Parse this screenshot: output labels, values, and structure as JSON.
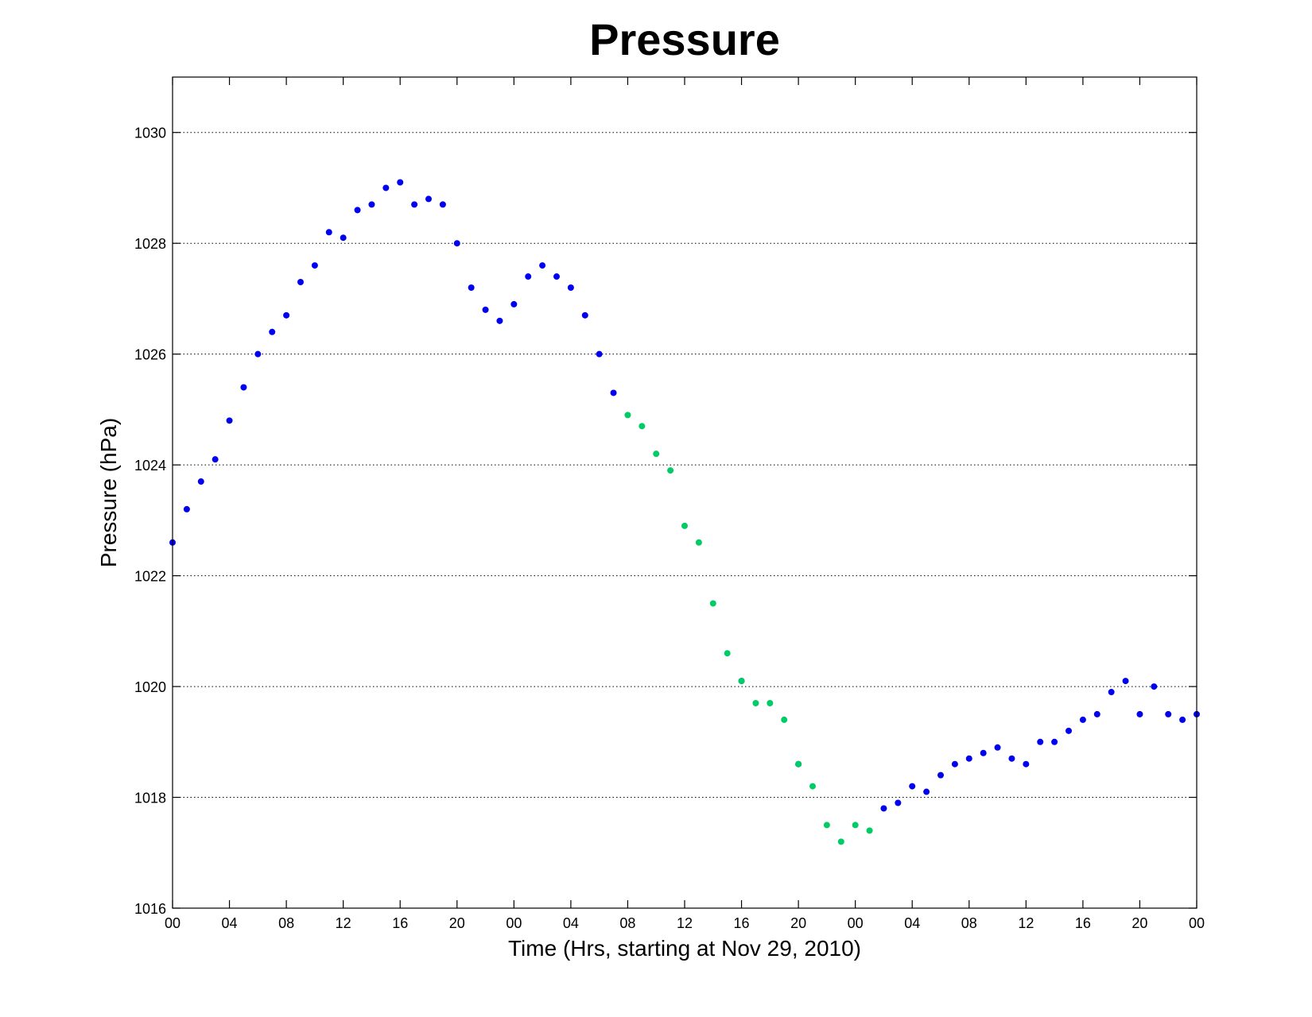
{
  "colors": {
    "background": "#ffffff",
    "axes": "#000000",
    "grid": "#000000",
    "series_observed": "#0000ee",
    "series_highlight": "#00cc66"
  },
  "chart_data": {
    "type": "scatter",
    "title": "Pressure",
    "xlabel": "Time (Hrs, starting at Nov 29, 2010)",
    "ylabel": "Pressure (hPa)",
    "x_unit": "hours since 00:00 Nov 29, 2010",
    "xlim": [
      0,
      72
    ],
    "ylim": [
      1016,
      1031
    ],
    "grid": "horizontal dotted at y ticks",
    "legend": "none",
    "x_ticks": [
      0,
      4,
      8,
      12,
      16,
      20,
      24,
      28,
      32,
      36,
      40,
      44,
      48,
      52,
      56,
      60,
      64,
      68,
      72
    ],
    "x_tick_labels": [
      "00",
      "04",
      "08",
      "12",
      "16",
      "20",
      "00",
      "04",
      "08",
      "12",
      "16",
      "20",
      "00",
      "04",
      "08",
      "12",
      "16",
      "20",
      "00"
    ],
    "y_ticks": [
      1016,
      1018,
      1020,
      1022,
      1024,
      1026,
      1028,
      1030
    ],
    "y_tick_labels": [
      "1016",
      "1018",
      "1020",
      "1022",
      "1024",
      "1026",
      "1028",
      "1030"
    ],
    "series": [
      {
        "color": "#0000ee",
        "points": [
          [
            0,
            1022.6
          ],
          [
            1,
            1023.2
          ],
          [
            2,
            1023.7
          ],
          [
            3,
            1024.1
          ],
          [
            4,
            1024.8
          ],
          [
            5,
            1025.4
          ],
          [
            6,
            1026.0
          ],
          [
            7,
            1026.4
          ],
          [
            8,
            1026.7
          ],
          [
            9,
            1027.3
          ],
          [
            10,
            1027.6
          ],
          [
            11,
            1028.2
          ],
          [
            12,
            1028.1
          ],
          [
            13,
            1028.6
          ],
          [
            14,
            1028.7
          ],
          [
            15,
            1029.0
          ],
          [
            16,
            1029.1
          ],
          [
            17,
            1028.7
          ],
          [
            18,
            1028.8
          ],
          [
            19,
            1028.7
          ],
          [
            20,
            1028.0
          ],
          [
            21,
            1027.2
          ],
          [
            22,
            1026.8
          ],
          [
            23,
            1026.6
          ],
          [
            24,
            1026.9
          ],
          [
            25,
            1027.4
          ],
          [
            26,
            1027.6
          ],
          [
            27,
            1027.4
          ],
          [
            28,
            1027.2
          ],
          [
            29,
            1026.7
          ],
          [
            30,
            1026.0
          ],
          [
            31,
            1025.3
          ],
          [
            40,
            1020.1
          ],
          [
            44,
            1018.6
          ],
          [
            50,
            1017.8
          ],
          [
            51,
            1017.9
          ],
          [
            52,
            1018.2
          ],
          [
            53,
            1018.1
          ],
          [
            54,
            1018.4
          ],
          [
            55,
            1018.6
          ],
          [
            56,
            1018.7
          ],
          [
            57,
            1018.8
          ],
          [
            58,
            1018.9
          ],
          [
            59,
            1018.7
          ],
          [
            60,
            1018.6
          ],
          [
            61,
            1019.0
          ],
          [
            62,
            1019.0
          ],
          [
            63,
            1019.2
          ],
          [
            64,
            1019.4
          ],
          [
            65,
            1019.5
          ],
          [
            66,
            1019.9
          ],
          [
            67,
            1020.1
          ],
          [
            68,
            1019.5
          ],
          [
            69,
            1020.0
          ],
          [
            70,
            1019.5
          ],
          [
            71,
            1019.4
          ],
          [
            72,
            1019.5
          ]
        ]
      },
      {
        "color": "#00cc66",
        "points": [
          [
            32,
            1024.9
          ],
          [
            33,
            1024.7
          ],
          [
            34,
            1024.2
          ],
          [
            35,
            1023.9
          ],
          [
            36,
            1022.9
          ],
          [
            37,
            1022.6
          ],
          [
            38,
            1021.5
          ],
          [
            39,
            1020.6
          ],
          [
            40,
            1020.1
          ],
          [
            41,
            1019.7
          ],
          [
            42,
            1019.7
          ],
          [
            43,
            1019.4
          ],
          [
            44,
            1018.6
          ],
          [
            45,
            1018.2
          ],
          [
            46,
            1017.5
          ],
          [
            47,
            1017.2
          ],
          [
            48,
            1017.5
          ],
          [
            49,
            1017.4
          ]
        ]
      }
    ]
  }
}
